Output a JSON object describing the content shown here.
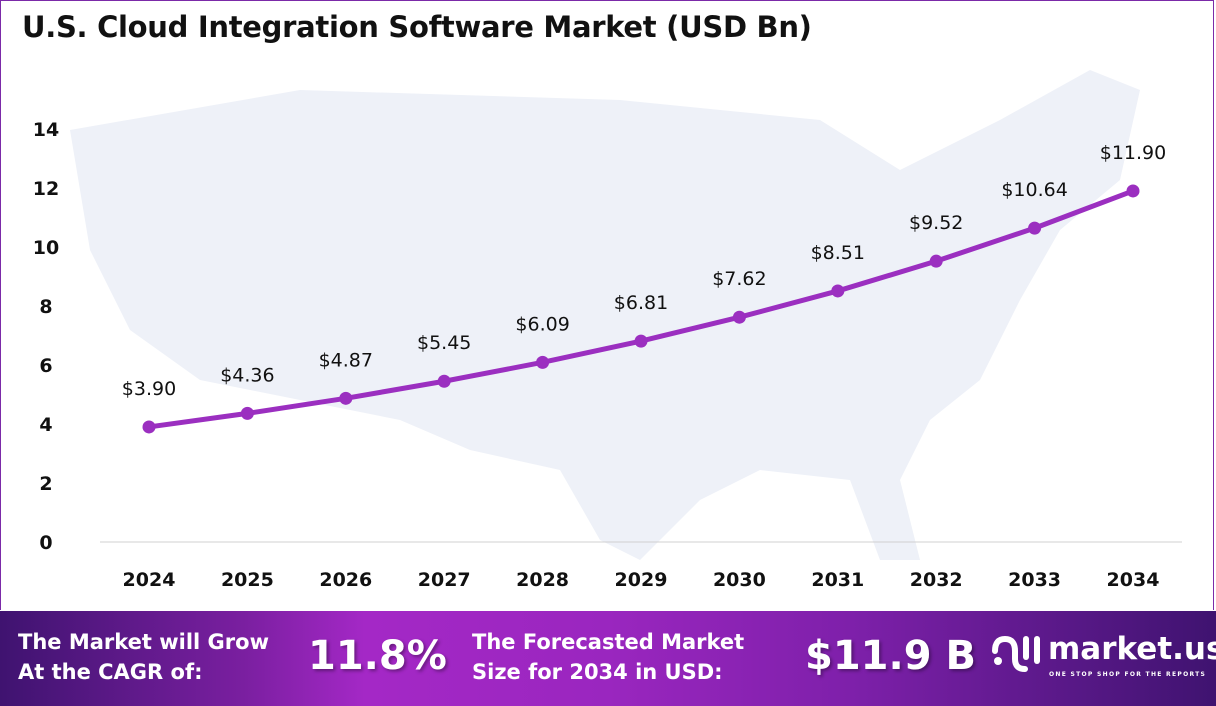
{
  "chart_data": {
    "type": "line",
    "title": "U.S. Cloud Integration Software Market (USD Bn)",
    "categories": [
      "2024",
      "2025",
      "2026",
      "2027",
      "2028",
      "2029",
      "2030",
      "2031",
      "2032",
      "2033",
      "2034"
    ],
    "values": [
      3.9,
      4.36,
      4.87,
      5.45,
      6.09,
      6.81,
      7.62,
      8.51,
      9.52,
      10.64,
      11.9
    ],
    "data_labels": [
      "$3.90",
      "$4.36",
      "$4.87",
      "$5.45",
      "$6.09",
      "$6.81",
      "$7.62",
      "$8.51",
      "$9.52",
      "$10.64",
      "$11.90"
    ],
    "yticks": [
      "0",
      "2",
      "4",
      "6",
      "8",
      "10",
      "12",
      "14"
    ],
    "ylim": [
      0,
      14
    ],
    "grid": false,
    "line_color": "#9b2fc0"
  },
  "footer": {
    "cagr_label_1": "The Market will Grow",
    "cagr_label_2": "At the CAGR of:",
    "cagr_value": "11.8%",
    "forecast_label_1": "The Forecasted Market",
    "forecast_label_2": "Size for 2034 in USD:",
    "forecast_value": "$11.9 B"
  },
  "logo": {
    "name": "market.us",
    "tagline": "ONE STOP SHOP FOR THE REPORTS"
  }
}
